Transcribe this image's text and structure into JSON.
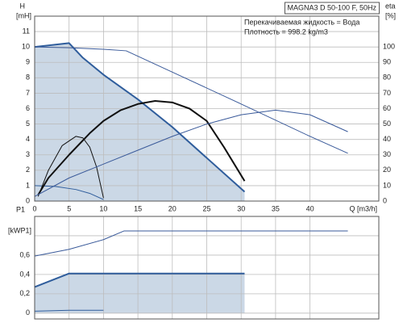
{
  "chart_data": [
    {
      "type": "line",
      "ylabel": "H",
      "yunit": "[mH]",
      "y2label": "eta",
      "y2unit": "[%]",
      "xlabel": "Q [m3/h]",
      "annotations": [
        "MAGNA3 D 50-100 F, 50Hz",
        "Перекачиваемая жидкость = Вода",
        "Плотность = 998.2 kg/m3"
      ],
      "xlim": [
        0,
        50
      ],
      "xticks": [
        0,
        5,
        10,
        15,
        20,
        25,
        30,
        35,
        40
      ],
      "ylim": [
        0,
        12
      ],
      "yticks": [
        0,
        1,
        2,
        3,
        4,
        5,
        6,
        7,
        8,
        9,
        10,
        11
      ],
      "y2lim": [
        0,
        120
      ],
      "y2ticks": [
        0,
        10,
        20,
        30,
        40,
        50,
        60,
        70,
        80,
        90,
        100
      ],
      "grid": true,
      "xtick_labels": true,
      "series": [
        {
          "color": "#2f5d9c",
          "width": 2,
          "fill": "#cbd8e6",
          "x": [
            0,
            2,
            5,
            7,
            10,
            15,
            20,
            25,
            30.5
          ],
          "values": [
            10.0,
            10.1,
            10.25,
            9.3,
            8.2,
            6.6,
            4.8,
            2.8,
            0.6
          ]
        },
        {
          "color": "#2f5d9c",
          "width": 1,
          "x": [
            0,
            3,
            6,
            8,
            10
          ],
          "values": [
            1.0,
            0.95,
            0.75,
            0.5,
            0.1
          ]
        },
        {
          "color": "#3a5a9a",
          "width": 1,
          "x": [
            0,
            5,
            10,
            13.3,
            20,
            30,
            40,
            45.5
          ],
          "values": [
            10.0,
            9.95,
            9.85,
            9.75,
            8.37,
            6.3,
            4.2,
            3.1
          ]
        },
        {
          "color": "#111111",
          "width": 2,
          "axis": "y2",
          "x": [
            0.5,
            2,
            5,
            8,
            10,
            12.5,
            15,
            17.5,
            20,
            22.5,
            25,
            27.5,
            30.5
          ],
          "values": [
            4,
            15,
            30,
            44,
            52,
            59,
            63,
            65,
            64,
            60,
            52,
            35,
            13
          ]
        },
        {
          "color": "#111111",
          "width": 1,
          "axis": "y2",
          "x": [
            0.5,
            2,
            4,
            6,
            7,
            8,
            9,
            10
          ],
          "values": [
            3,
            20,
            36,
            42,
            41,
            35,
            22,
            2
          ]
        },
        {
          "color": "#3a5a9a",
          "width": 1,
          "axis": "y2",
          "x": [
            0,
            5,
            10,
            15,
            20,
            25,
            30,
            35,
            40,
            45.5
          ],
          "values": [
            3,
            15,
            24,
            33,
            42,
            50,
            56,
            59,
            56,
            45
          ]
        }
      ]
    },
    {
      "type": "line",
      "ylabel": "P1",
      "yunit": "[kWP1]",
      "xlim": [
        0,
        50
      ],
      "xticks": [
        0,
        5,
        10,
        15,
        20,
        25,
        30,
        35,
        40
      ],
      "ylim": [
        -0.06,
        1.0
      ],
      "yticks": [
        0,
        {
          "value": 0.2,
          "label": "0,2"
        },
        {
          "value": 0.4,
          "label": "0,4"
        },
        {
          "value": 0.6,
          "label": "0,6"
        },
        {
          "value": 0.8,
          "label": ""
        }
      ],
      "grid": true,
      "xtick_labels": false,
      "series": [
        {
          "color": "#2f5d9c",
          "width": 2,
          "fill": "#cbd8e6",
          "x": [
            0,
            5,
            30.5
          ],
          "values": [
            0.27,
            0.41,
            0.41
          ]
        },
        {
          "color": "#2f5d9c",
          "width": 1,
          "x": [
            0,
            5,
            10
          ],
          "values": [
            0.02,
            0.03,
            0.03
          ]
        },
        {
          "color": "#3a5a9a",
          "width": 1,
          "x": [
            0,
            5,
            10,
            13,
            45.5
          ],
          "values": [
            0.59,
            0.66,
            0.76,
            0.85,
            0.85
          ]
        }
      ]
    }
  ]
}
